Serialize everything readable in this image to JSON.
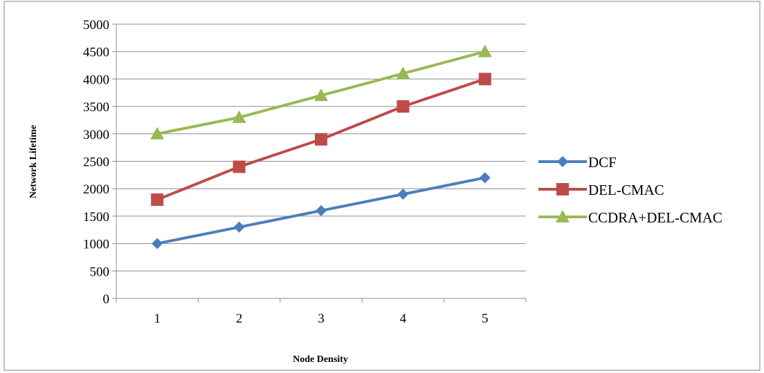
{
  "chart_data": {
    "type": "line",
    "xlabel": "Node Density",
    "ylabel": "Network Lifetime",
    "categories": [
      "1",
      "2",
      "3",
      "4",
      "5"
    ],
    "y_ticks": [
      "0",
      "500",
      "1000",
      "1500",
      "2000",
      "2500",
      "3000",
      "3500",
      "4000",
      "4500",
      "5000"
    ],
    "ylim": [
      0,
      5000
    ],
    "grid": true,
    "legend_position": "right",
    "series": [
      {
        "name": "DCF",
        "color": "#4a7ebb",
        "marker": "diamond",
        "values": [
          1000,
          1300,
          1600,
          1900,
          2200
        ]
      },
      {
        "name": "DEL-CMAC",
        "color": "#be4b48",
        "marker": "square",
        "values": [
          1800,
          2400,
          2900,
          3500,
          4000
        ]
      },
      {
        "name": "CCDRA+DEL-CMAC",
        "color": "#98b954",
        "marker": "triangle",
        "values": [
          3000,
          3300,
          3700,
          4100,
          4500
        ]
      }
    ]
  }
}
